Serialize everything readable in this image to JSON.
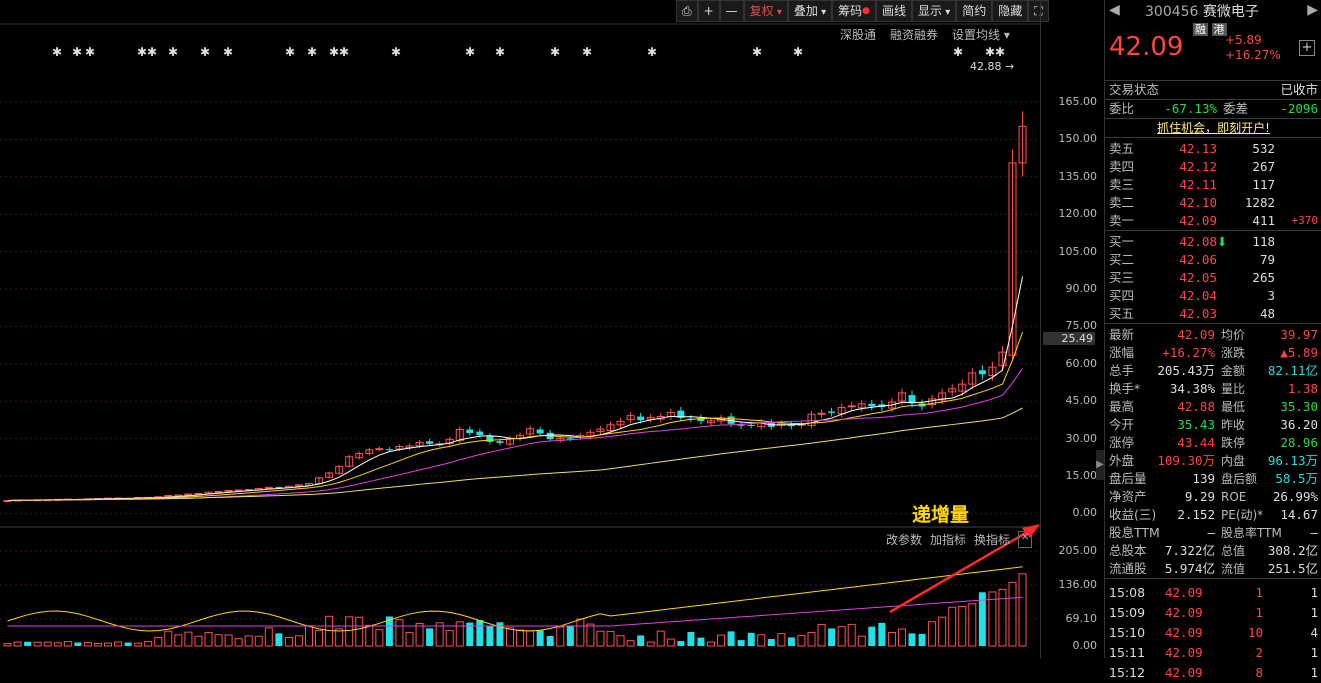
{
  "toolbar": {
    "buttons": [
      {
        "label": "",
        "icon": "lock-icon"
      },
      {
        "label": "+"
      },
      {
        "label": "—"
      },
      {
        "label": "复权",
        "active": true
      },
      {
        "label": "叠加"
      },
      {
        "label": "筹码"
      },
      {
        "label": "画线"
      },
      {
        "label": "显示"
      },
      {
        "label": "简约"
      },
      {
        "label": "隐藏"
      },
      {
        "label": "",
        "icon": "fullscreen-icon"
      }
    ],
    "sub": [
      "深股通",
      "融资融券",
      "设置均线"
    ]
  },
  "price_axis": [
    "165.00",
    "150.00",
    "135.00",
    "120.00",
    "105.00",
    "90.00",
    "75.00",
    "60.00",
    "45.00",
    "30.00",
    "15.00",
    "0.00"
  ],
  "cursor_price": "25.49",
  "high_marker": "42.88",
  "volume_axis": [
    "205.00",
    "136.00",
    "69.10",
    "0.00"
  ],
  "volume_toolbar": [
    "改参数",
    "加指标",
    "换指标"
  ],
  "annotation": "递增量",
  "stock": {
    "code": "300456",
    "name": "赛微电子",
    "tag1": "融",
    "tag2": "港",
    "price": "42.09",
    "change": "+5.89",
    "change_pct": "+16.27%"
  },
  "trade_status": {
    "label": "交易状态",
    "value": "已收市"
  },
  "weibi": {
    "label": "委比",
    "value": "-67.13%",
    "label2": "委差",
    "value2": "-2096"
  },
  "promo": "抓住机会，即刻开户!",
  "sell": [
    {
      "label": "卖五",
      "price": "42.13",
      "vol": "532"
    },
    {
      "label": "卖四",
      "price": "42.12",
      "vol": "267"
    },
    {
      "label": "卖三",
      "price": "42.11",
      "vol": "117"
    },
    {
      "label": "卖二",
      "price": "42.10",
      "vol": "1282"
    },
    {
      "label": "卖一",
      "price": "42.09",
      "vol": "411",
      "extra": "+370"
    }
  ],
  "buy": [
    {
      "label": "买一",
      "price": "42.08",
      "vol": "118"
    },
    {
      "label": "买二",
      "price": "42.06",
      "vol": "79"
    },
    {
      "label": "买三",
      "price": "42.05",
      "vol": "265"
    },
    {
      "label": "买四",
      "price": "42.04",
      "vol": "3"
    },
    {
      "label": "买五",
      "price": "42.03",
      "vol": "48"
    }
  ],
  "stats": [
    {
      "l1": "最新",
      "v1": "42.09",
      "c1": "red",
      "l2": "均价",
      "v2": "39.97",
      "c2": "red"
    },
    {
      "l1": "涨幅",
      "v1": "+16.27%",
      "c1": "red",
      "l2": "涨跌",
      "v2": "▲5.89",
      "c2": "red"
    },
    {
      "l1": "总手",
      "v1": "205.43万",
      "c1": "white",
      "l2": "金额",
      "v2": "82.11亿",
      "c2": "cyan"
    },
    {
      "l1": "换手*",
      "v1": "34.38%",
      "c1": "white",
      "l2": "量比",
      "v2": "1.38",
      "c2": "red"
    },
    {
      "l1": "最高",
      "v1": "42.88",
      "c1": "red",
      "l2": "最低",
      "v2": "35.30",
      "c2": "green"
    },
    {
      "l1": "今开",
      "v1": "35.43",
      "c1": "green",
      "l2": "昨收",
      "v2": "36.20",
      "c2": "white"
    },
    {
      "l1": "涨停",
      "v1": "43.44",
      "c1": "red",
      "l2": "跌停",
      "v2": "28.96",
      "c2": "green"
    },
    {
      "l1": "外盘",
      "v1": "109.30万",
      "c1": "red",
      "l2": "内盘",
      "v2": "96.13万",
      "c2": "cyan"
    },
    {
      "l1": "盘后量",
      "v1": "139",
      "c1": "white",
      "l2": "盘后额",
      "v2": "58.5万",
      "c2": "cyan"
    },
    {
      "l1": "净资产",
      "v1": "9.29",
      "c1": "white",
      "l2": "ROE",
      "v2": "26.99%",
      "c2": "white"
    },
    {
      "l1": "收益(三)",
      "v1": "2.152",
      "c1": "white",
      "l2": "PE(动)*",
      "v2": "14.67",
      "c2": "white"
    },
    {
      "l1": "股息TTM",
      "v1": "—",
      "c1": "white",
      "l2": "股息率TTM",
      "v2": "—",
      "c2": "white"
    },
    {
      "l1": "总股本",
      "v1": "7.322亿",
      "c1": "white",
      "l2": "总值",
      "v2": "308.2亿",
      "c2": "white"
    },
    {
      "l1": "流通股",
      "v1": "5.974亿",
      "c1": "white",
      "l2": "流值",
      "v2": "251.5亿",
      "c2": "white"
    }
  ],
  "ticks": [
    {
      "time": "15:08",
      "price": "42.09",
      "vol": "1",
      "n": "1"
    },
    {
      "time": "15:09",
      "price": "42.09",
      "vol": "1",
      "n": "1"
    },
    {
      "time": "15:10",
      "price": "42.09",
      "vol": "10",
      "n": "4"
    },
    {
      "time": "15:11",
      "price": "42.09",
      "vol": "2",
      "n": "1"
    },
    {
      "time": "15:12",
      "price": "42.09",
      "vol": "8",
      "n": "1"
    }
  ],
  "colors": {
    "up": "#ff5050",
    "down": "#22e0e8",
    "ma5": "#ffffff",
    "ma10": "#ffd700",
    "ma20": "#e040e0",
    "ma60": "#e8e070"
  }
}
